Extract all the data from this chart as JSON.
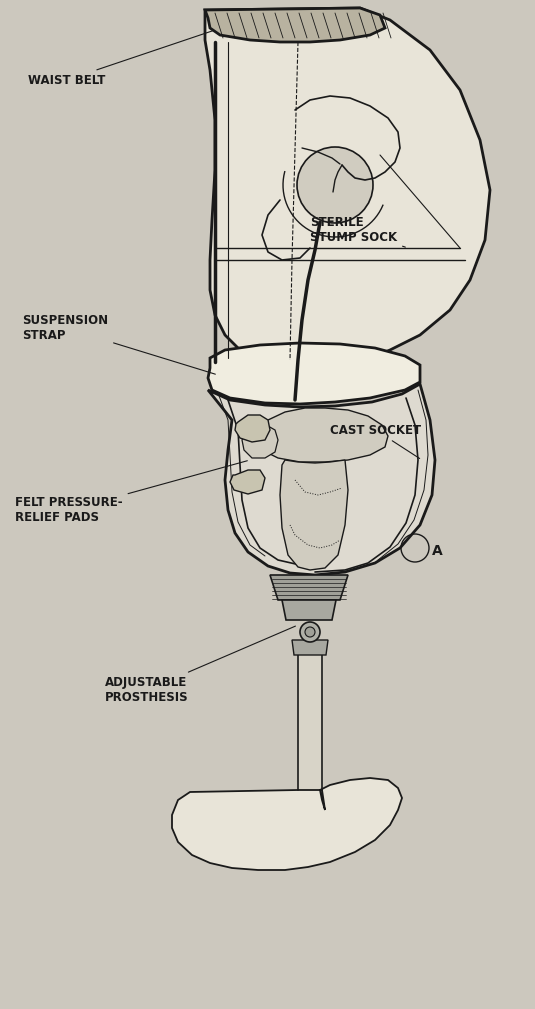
{
  "bg_color": "#ccc8be",
  "line_color": "#1a1a1a",
  "fill_body": "#e8e4d8",
  "fill_belt": "#b8b2a0",
  "fill_bone": "#d0ccc0",
  "fill_socket": "#dedad0",
  "labels": {
    "waist_belt": "WAIST BELT",
    "sterile_stump_sock": "STERILE\nSTUMP SOCK",
    "suspension_strap": "SUSPENSION\nSTRAP",
    "cast_socket": "CAST SOCKET",
    "felt_pressure_relief": "FELT PRESSURE-\nRELIEF PADS",
    "adjustable_prosthesis": "ADJUSTABLE\nPROSTHESIS",
    "label_a": "A"
  },
  "figsize": [
    5.35,
    10.09
  ],
  "dpi": 100
}
